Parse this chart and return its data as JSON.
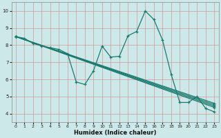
{
  "xlabel": "Humidex (Indice chaleur)",
  "bg_color": "#cce8e8",
  "grid_color": "#aacccc",
  "line_color": "#1a7a6e",
  "xlim": [
    -0.5,
    23.5
  ],
  "ylim": [
    3.5,
    10.5
  ],
  "xticks": [
    0,
    1,
    2,
    3,
    4,
    5,
    6,
    7,
    8,
    9,
    10,
    11,
    12,
    13,
    14,
    15,
    16,
    17,
    18,
    19,
    20,
    21,
    22,
    23
  ],
  "yticks": [
    4,
    5,
    6,
    7,
    8,
    9,
    10
  ],
  "lines": [
    [
      0,
      8.5,
      1,
      8.4,
      2,
      8.1,
      3,
      7.95,
      4,
      7.85,
      5,
      7.75,
      6,
      7.5,
      7,
      5.85,
      8,
      5.7,
      9,
      6.5,
      10,
      7.95,
      11,
      7.3,
      12,
      7.35,
      13,
      8.55,
      14,
      8.8,
      15,
      10.0,
      16,
      9.5,
      17,
      8.3,
      18,
      6.3,
      19,
      4.65,
      20,
      4.65,
      21,
      5.0,
      22,
      4.3,
      23,
      4.1
    ],
    [
      0,
      8.5,
      6,
      7.45,
      7,
      7.35,
      23,
      4.55
    ],
    [
      0,
      8.5,
      6,
      7.38,
      7,
      7.28,
      23,
      4.48
    ],
    [
      0,
      8.5,
      6,
      7.3,
      7,
      7.2,
      23,
      4.4
    ],
    [
      0,
      8.5,
      6,
      7.22,
      7,
      7.12,
      23,
      4.32
    ]
  ]
}
